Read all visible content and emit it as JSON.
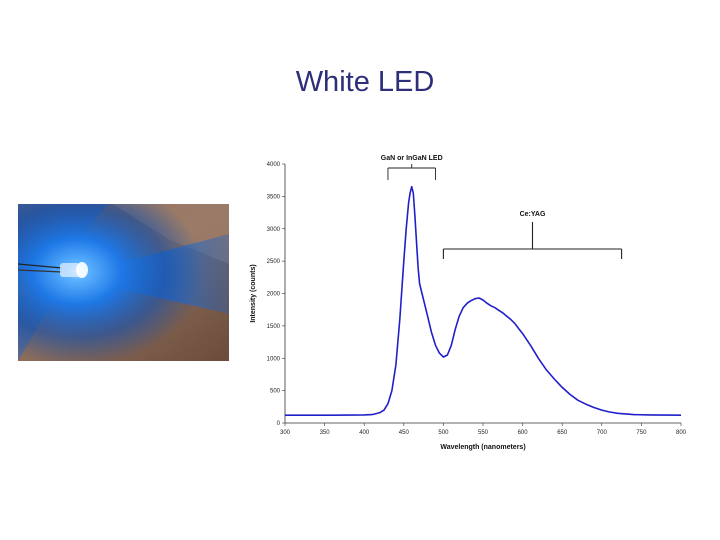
{
  "slide": {
    "title": "White LED"
  },
  "photo": {
    "subject": "blue-led-glowing"
  },
  "chart_data": {
    "type": "line",
    "title": "",
    "xlabel": "Wavelength (nanometers)",
    "ylabel": "Intensity (counts)",
    "xlim": [
      300,
      800
    ],
    "ylim": [
      0,
      4000
    ],
    "xticks": [
      300,
      350,
      400,
      450,
      500,
      550,
      600,
      650,
      700,
      750,
      800
    ],
    "yticks": [
      0,
      500,
      1000,
      1500,
      2000,
      2500,
      3000,
      3500,
      4000
    ],
    "grid": false,
    "series": [
      {
        "color": "#2020c8",
        "x": [
          300,
          320,
          340,
          360,
          380,
          400,
          410,
          420,
          425,
          430,
          435,
          440,
          445,
          450,
          453,
          456,
          458,
          460,
          462,
          464,
          466,
          468,
          470,
          473,
          476,
          480,
          485,
          490,
          495,
          500,
          505,
          510,
          515,
          520,
          525,
          530,
          535,
          540,
          545,
          550,
          555,
          560,
          565,
          570,
          575,
          580,
          585,
          590,
          595,
          600,
          610,
          620,
          630,
          640,
          650,
          660,
          670,
          680,
          690,
          700,
          710,
          720,
          730,
          740,
          760,
          780,
          800
        ],
        "y": [
          120,
          120,
          120,
          120,
          122,
          125,
          130,
          160,
          200,
          300,
          500,
          900,
          1600,
          2500,
          3000,
          3400,
          3550,
          3650,
          3550,
          3200,
          2800,
          2400,
          2150,
          2000,
          1850,
          1650,
          1400,
          1200,
          1080,
          1020,
          1050,
          1200,
          1450,
          1650,
          1780,
          1850,
          1890,
          1920,
          1930,
          1900,
          1850,
          1810,
          1780,
          1740,
          1700,
          1650,
          1600,
          1540,
          1460,
          1380,
          1200,
          1000,
          820,
          680,
          550,
          440,
          350,
          290,
          240,
          200,
          170,
          150,
          140,
          130,
          125,
          122,
          120
        ]
      }
    ],
    "annotations": [
      {
        "label": "GaN or InGaN  LED",
        "x_start": 430,
        "x_end": 490
      },
      {
        "label": "Ce:YAG",
        "x_start": 500,
        "x_end": 725
      }
    ]
  }
}
